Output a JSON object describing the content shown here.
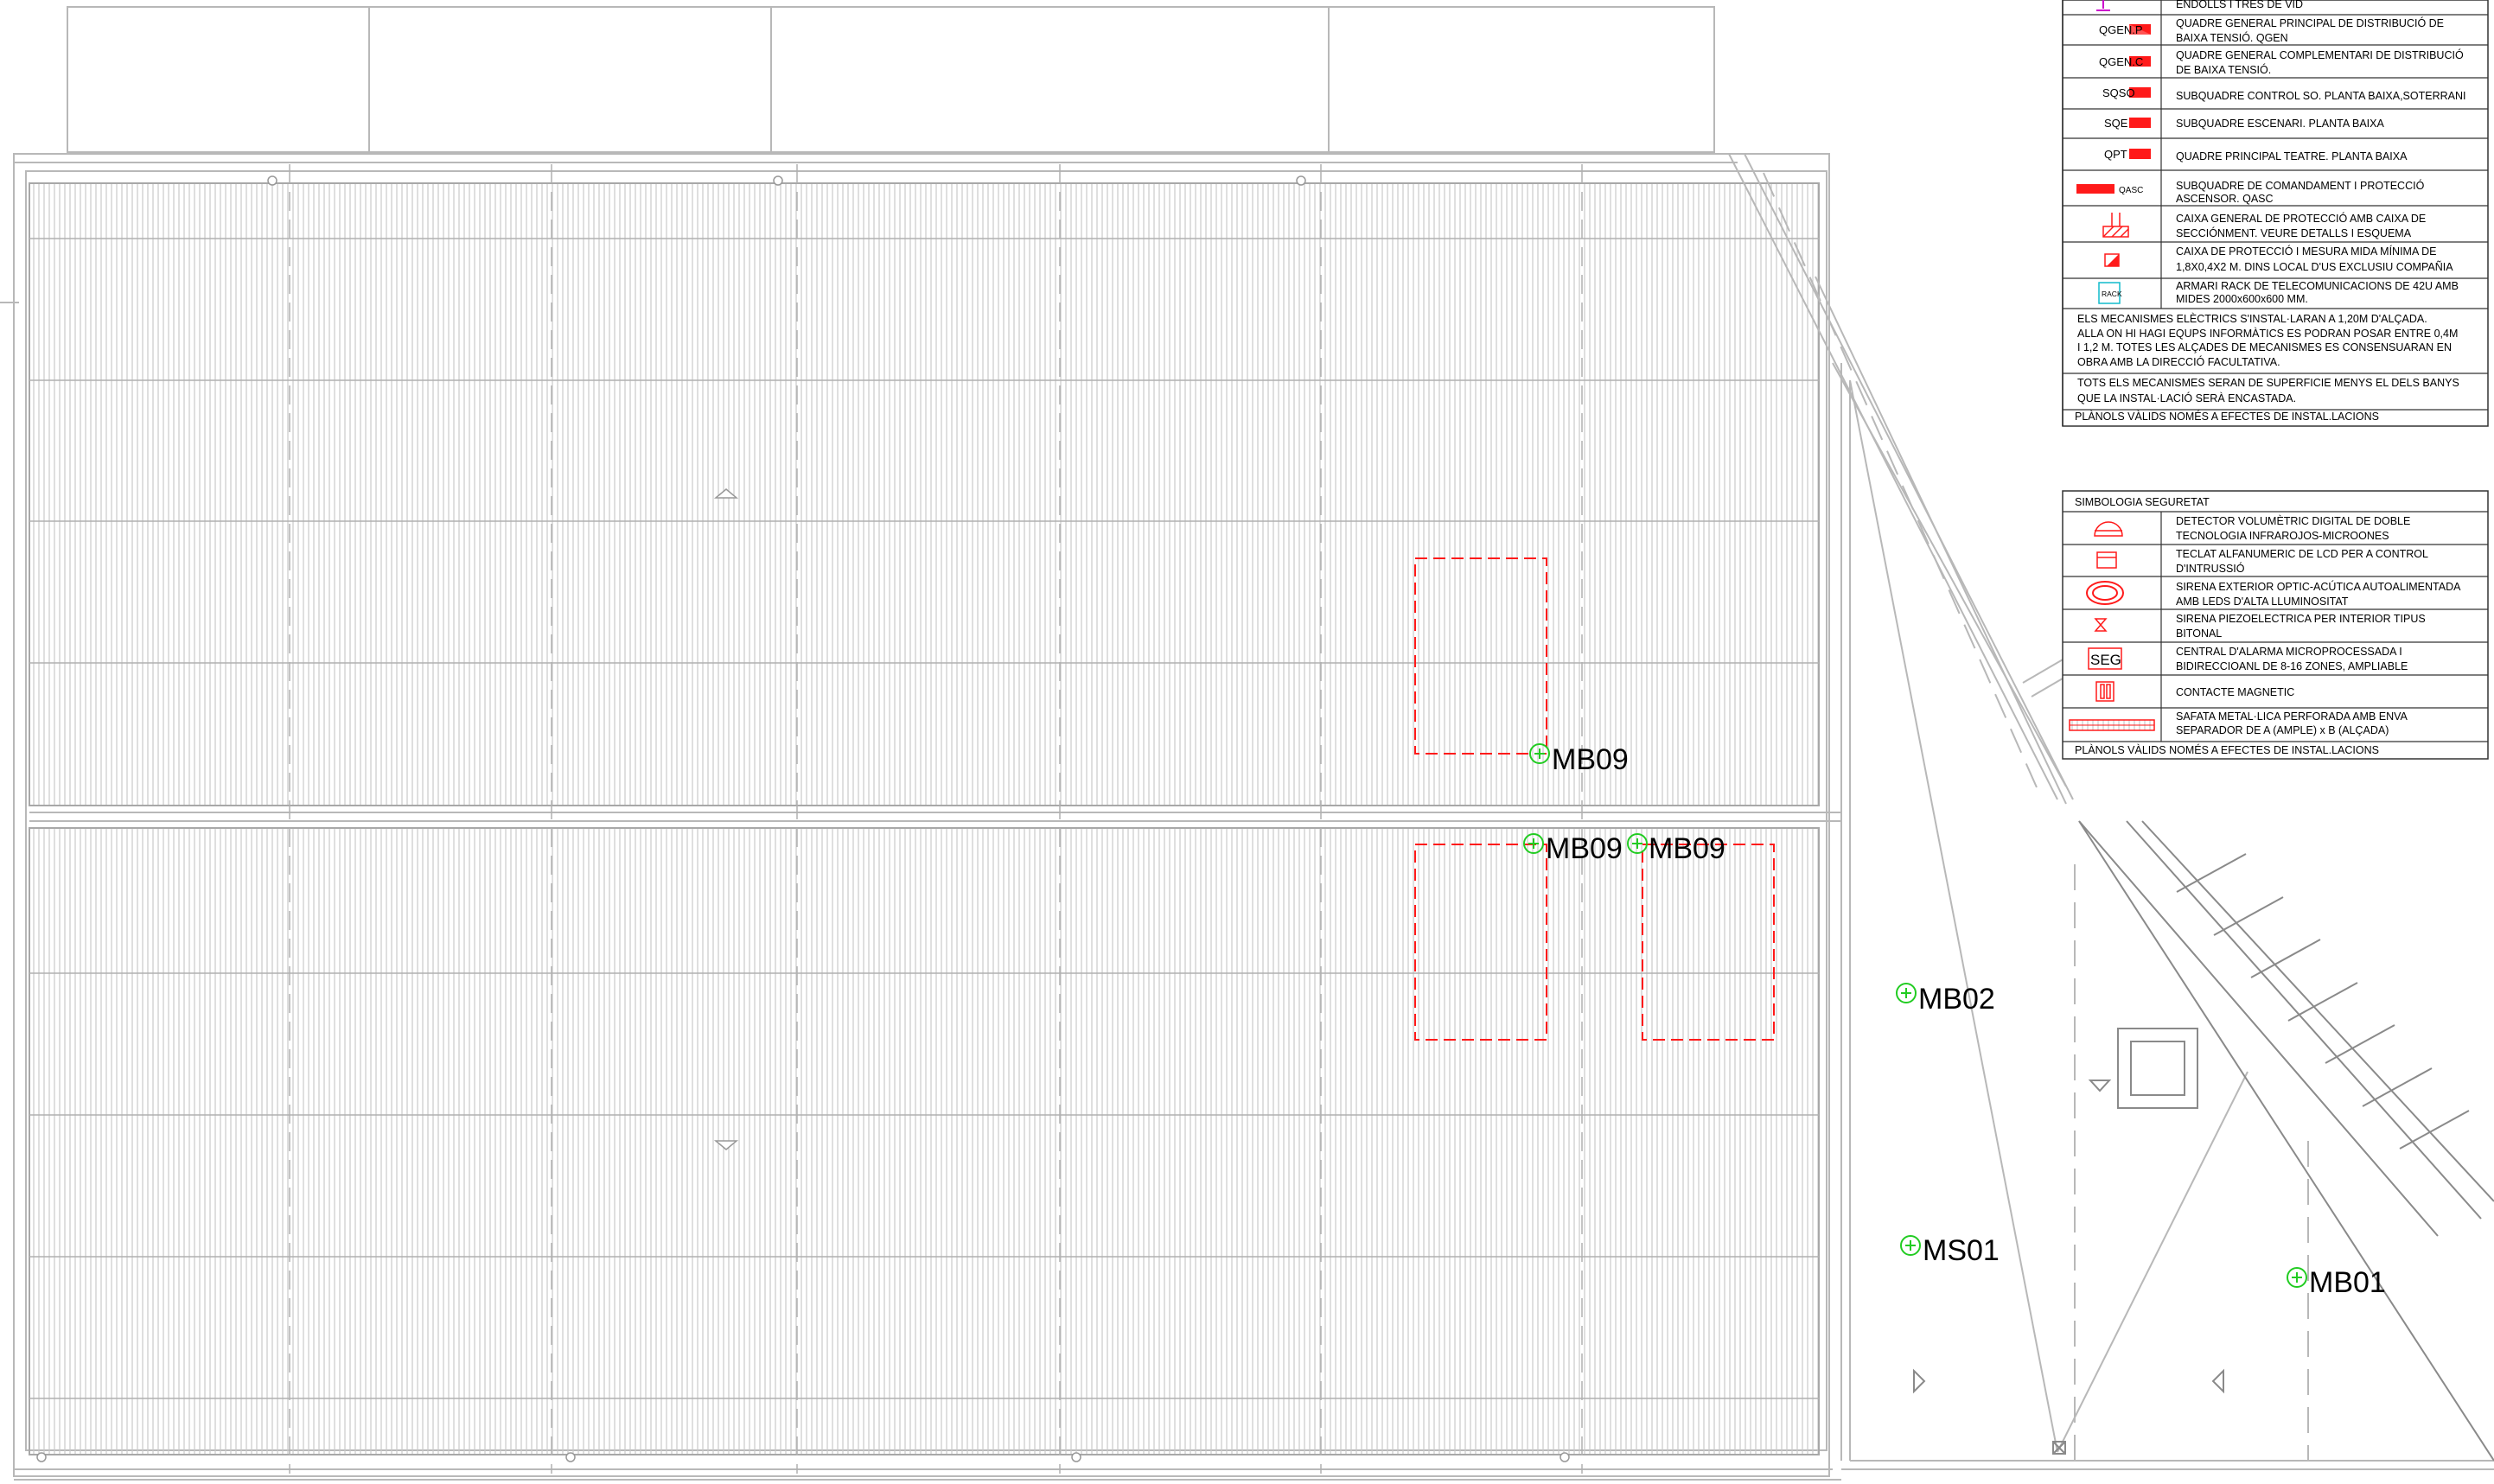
{
  "legend_electrical": {
    "rows": [
      {
        "symbol": "",
        "icon": "socket-and-ground-icon",
        "text": [
          "ENDOLLS I TRES DE VID"
        ]
      },
      {
        "symbol": "QGEN.P",
        "icon": "red-panel-icon",
        "text": [
          "QUADRE GENERAL PRINCIPAL DE DISTRIBUCIÓ DE",
          "BAIXA TENSIÓ. QGEN"
        ]
      },
      {
        "symbol": "QGEN.C",
        "icon": "red-panel-icon",
        "text": [
          "QUADRE GENERAL COMPLEMENTARI DE DISTRIBUCIÓ",
          "DE BAIXA TENSIÓ."
        ]
      },
      {
        "symbol": "SQSO",
        "icon": "red-panel-icon",
        "text": [
          "SUBQUADRE CONTROL SO. PLANTA BAIXA,SOTERRANI"
        ]
      },
      {
        "symbol": "SQE",
        "icon": "red-panel-icon",
        "text": [
          "SUBQUADRE ESCENARI. PLANTA BAIXA"
        ]
      },
      {
        "symbol": "QPT",
        "icon": "red-panel-icon",
        "text": [
          "QUADRE PRINCIPAL TEATRE. PLANTA BAIXA"
        ]
      },
      {
        "symbol": "QASC",
        "icon": "red-long-panel-icon",
        "text": [
          "SUBQUADRE DE COMANDAMENT I PROTECCIÓ",
          "ASCENSOR. QASC"
        ]
      },
      {
        "symbol": "",
        "icon": "protection-box-icon",
        "text": [
          "CAIXA GENERAL DE PROTECCIÓ AMB CAIXA DE",
          "SECCIÓNMENT. VEURE DETALLS I ESQUEMA"
        ]
      },
      {
        "symbol": "",
        "icon": "meter-box-icon",
        "text": [
          "CAIXA  DE PROTECCIÓ I MESURA MIDA MÍNIMA DE",
          "1,8X0,4X2 M. DINS LOCAL D'US EXCLUSIU COMPAÑIA"
        ]
      },
      {
        "symbol": "RACK",
        "icon": "rack-icon",
        "text": [
          "ARMARI RACK DE TELECOMUNICACIONS DE 42U  AMB",
          "MIDES 2000x600x600 MM."
        ]
      }
    ],
    "notes": [
      [
        "ELS MECANISMES ELÈCTRICS S'INSTAL·LARAN A 1,20M D'ALÇADA.",
        "ALLA ON HI HAGI EQUPS INFORMÀTICS ES PODRAN POSAR ENTRE 0,4M",
        "I 1,2 M. TOTES LES ALÇADES DE MECANISMES ES CONSENSUARAN EN",
        "OBRA AMB LA DIRECCIÓ FACULTATIVA."
      ],
      [
        "TOTS ELS MECANISMES SERAN DE SUPERFICIE MENYS EL DELS BANYS",
        "QUE LA INSTAL·LACIÓ SERÀ ENCASTADA."
      ],
      [
        "PLÀNOLS VÀLIDS NOMÉS A EFECTES DE INSTAL.LACIONS"
      ]
    ]
  },
  "legend_security": {
    "title": "SIMBOLOGIA SEGURETAT",
    "rows": [
      {
        "symbol": "",
        "icon": "volumetric-detector-icon",
        "text": [
          "DETECTOR VOLUMÈTRIC DIGITAL DE DOBLE",
          "TECNOLOGIA INFRAROJOS-MICROONES"
        ]
      },
      {
        "symbol": "",
        "icon": "keypad-icon",
        "text": [
          "TECLAT ALFANUMERIC DE LCD PER A CONTROL",
          "D'INTRUSSIÓ"
        ]
      },
      {
        "symbol": "",
        "icon": "exterior-siren-icon",
        "text": [
          "SIRENA EXTERIOR OPTIC-ACÚTICA AUTOALIMENTADA",
          "AMB LEDS D'ALTA LLUMINOSITAT"
        ]
      },
      {
        "symbol": "",
        "icon": "interior-siren-icon",
        "text": [
          "SIRENA PIEZOELECTRICA PER INTERIOR TIPUS",
          "BITONAL"
        ]
      },
      {
        "symbol": "SEG",
        "icon": "alarm-central-icon",
        "text": [
          "CENTRAL D'ALARMA MICROPROCESSADA I",
          "BIDIRECCIOANL DE 8-16 ZONES, AMPLIABLE"
        ]
      },
      {
        "symbol": "",
        "icon": "magnetic-contact-icon",
        "text": [
          "CONTACTE MAGNETIC"
        ]
      },
      {
        "symbol": "",
        "icon": "cable-tray-icon",
        "text": [
          "SAFATA METAL·LICA PERFORADA AMB ENVA",
          "SEPARADOR DE A (AMPLE) x B (ALÇADA)"
        ]
      }
    ],
    "footer": "PLÀNOLS VÀLIDS NOMÉS A EFECTES DE INSTAL.LACIONS"
  },
  "plan_labels": [
    {
      "id": "mb09-a",
      "text": "MB09"
    },
    {
      "id": "mb09-b",
      "text": "MB09"
    },
    {
      "id": "mb09-c",
      "text": "MB09"
    },
    {
      "id": "mb02",
      "text": "MB02"
    },
    {
      "id": "ms01",
      "text": "MS01"
    },
    {
      "id": "mb01",
      "text": "MB01"
    }
  ],
  "colors": {
    "line": "#b8b8b8",
    "line_dark": "#8a8a8a",
    "hatch": "#c9c9c9",
    "security_red": "#ff1a1a",
    "marker_green": "#22cc22",
    "rack_cyan": "#11bbcc",
    "magenta": "#cc00cc",
    "text": "#000000"
  }
}
